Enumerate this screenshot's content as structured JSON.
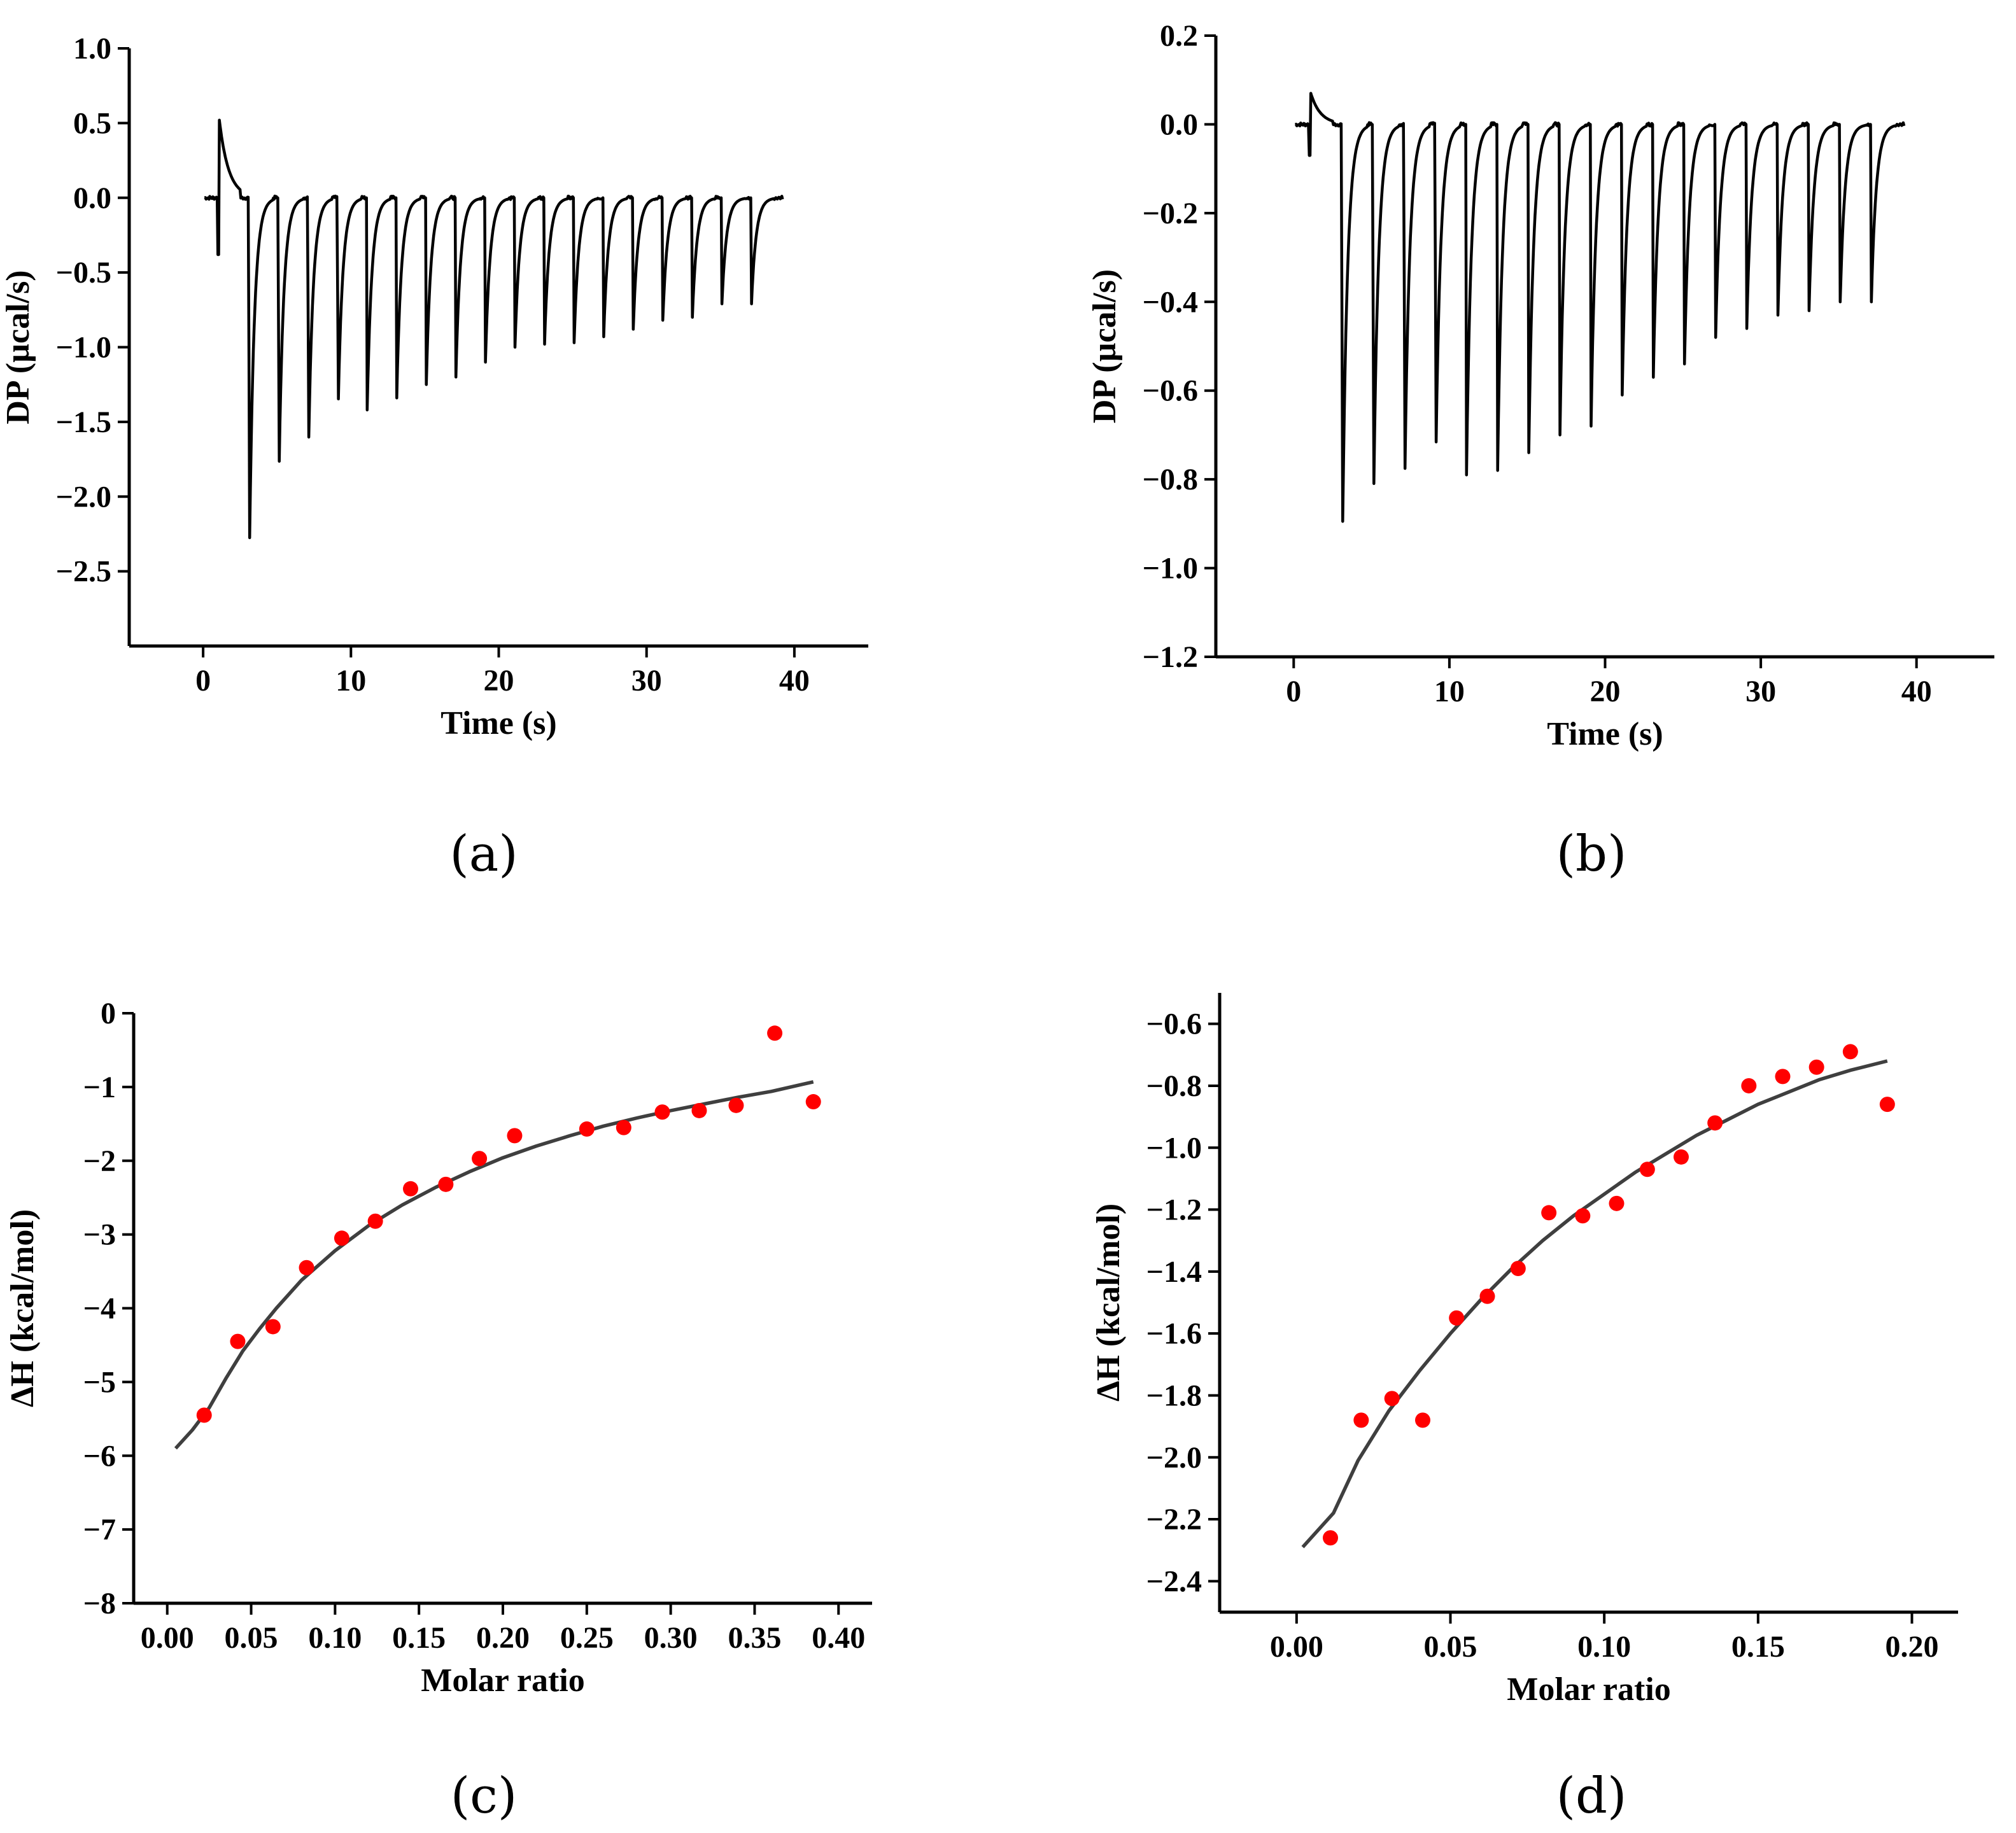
{
  "chart_data": [
    {
      "panel": "(a)",
      "type": "line",
      "title": "",
      "xlabel": "Time (s)",
      "ylabel": "DP (µcal/s)",
      "xlim": [
        -5,
        45
      ],
      "ylim": [
        -3.0,
        1.0
      ],
      "xticks": [
        0,
        10,
        20,
        30,
        40
      ],
      "xtick_labels": [
        "0",
        "10",
        "20",
        "30",
        "40"
      ],
      "yticks": [
        1.0,
        0.5,
        0.0,
        -0.5,
        -1.0,
        -1.5,
        -2.0,
        -2.5
      ],
      "ytick_labels": [
        "1.0",
        "0.5",
        "0.0",
        "−0.5",
        "−1.0",
        "−1.5",
        "−2.0",
        "−2.5"
      ],
      "grid": false,
      "series": [
        {
          "color": "#000000",
          "baseline": 0.0,
          "x_start": 0.1,
          "x_end": 39.2,
          "initial_spike": {
            "x": 1.1,
            "dip": -0.38,
            "peak": 0.52
          },
          "injections": [
            {
              "x": 3.1,
              "min": -2.67
            },
            {
              "x": 5.1,
              "min": -2.07
            },
            {
              "x": 7.1,
              "min": -1.88
            },
            {
              "x": 9.1,
              "min": -1.58
            },
            {
              "x": 11.1,
              "min": -1.42
            },
            {
              "x": 13.1,
              "min": -1.34
            },
            {
              "x": 15.1,
              "min": -1.25
            },
            {
              "x": 17.1,
              "min": -1.2
            },
            {
              "x": 19.1,
              "min": -1.1
            },
            {
              "x": 21.1,
              "min": -1.0
            },
            {
              "x": 23.1,
              "min": -0.98
            },
            {
              "x": 25.1,
              "min": -0.97
            },
            {
              "x": 27.1,
              "min": -0.93
            },
            {
              "x": 29.1,
              "min": -0.88
            },
            {
              "x": 31.1,
              "min": -0.82
            },
            {
              "x": 33.1,
              "min": -0.8
            },
            {
              "x": 35.1,
              "min": -0.71
            },
            {
              "x": 37.1,
              "min": -0.71
            }
          ]
        }
      ]
    },
    {
      "panel": "(b)",
      "type": "line",
      "title": "",
      "xlabel": "Time (s)",
      "ylabel": "DP (µcal/s)",
      "xlim": [
        -5,
        45
      ],
      "ylim": [
        -1.2,
        0.2
      ],
      "xticks": [
        0,
        10,
        20,
        30,
        40
      ],
      "xtick_labels": [
        "0",
        "10",
        "20",
        "30",
        "40"
      ],
      "yticks": [
        0.2,
        0.0,
        -0.2,
        -0.4,
        -0.6,
        -0.8,
        -1.0,
        -1.2
      ],
      "ytick_labels": [
        "0.2",
        "0.0",
        "−0.2",
        "−0.4",
        "−0.6",
        "−0.8",
        "−1.0",
        "−1.2"
      ],
      "grid": false,
      "series": [
        {
          "color": "#000000",
          "baseline": 0.0,
          "x_start": 0.1,
          "x_end": 39.2,
          "initial_spike": {
            "x": 1.1,
            "dip": -0.07,
            "peak": 0.07
          },
          "injections": [
            {
              "x": 3.1,
              "min": -1.05
            },
            {
              "x": 5.1,
              "min": -0.95
            },
            {
              "x": 7.1,
              "min": -0.91
            },
            {
              "x": 9.1,
              "min": -0.84
            },
            {
              "x": 11.1,
              "min": -0.79
            },
            {
              "x": 13.1,
              "min": -0.78
            },
            {
              "x": 15.1,
              "min": -0.74
            },
            {
              "x": 17.1,
              "min": -0.7
            },
            {
              "x": 19.1,
              "min": -0.68
            },
            {
              "x": 21.1,
              "min": -0.61
            },
            {
              "x": 23.1,
              "min": -0.57
            },
            {
              "x": 25.1,
              "min": -0.54
            },
            {
              "x": 27.1,
              "min": -0.48
            },
            {
              "x": 29.1,
              "min": -0.46
            },
            {
              "x": 31.1,
              "min": -0.43
            },
            {
              "x": 33.1,
              "min": -0.42
            },
            {
              "x": 35.1,
              "min": -0.4
            },
            {
              "x": 37.1,
              "min": -0.4
            }
          ]
        }
      ]
    },
    {
      "panel": "(c)",
      "type": "scatter",
      "title": "",
      "xlabel": "Molar ratio",
      "ylabel": "ΔH (kcal/mol)",
      "xlim": [
        -0.02,
        0.42
      ],
      "ylim": [
        -8,
        0
      ],
      "xticks": [
        0.0,
        0.05,
        0.1,
        0.15,
        0.2,
        0.25,
        0.3,
        0.35,
        0.4
      ],
      "xtick_labels": [
        "0.00",
        "0.05",
        "0.10",
        "0.15",
        "0.20",
        "0.25",
        "0.30",
        "0.35",
        "0.40"
      ],
      "yticks": [
        0,
        -1,
        -2,
        -3,
        -4,
        -5,
        -6,
        -7,
        -8
      ],
      "ytick_labels": [
        "0",
        "−1",
        "−2",
        "−3",
        "−4",
        "−5",
        "−6",
        "−7",
        "−8"
      ],
      "grid": false,
      "points": {
        "color": "#ff0000",
        "x": [
          0.022,
          0.042,
          0.063,
          0.083,
          0.104,
          0.124,
          0.145,
          0.166,
          0.186,
          0.207,
          0.25,
          0.272,
          0.295,
          0.317,
          0.339,
          0.362,
          0.385
        ],
        "y": [
          -5.45,
          -4.45,
          -4.25,
          -3.45,
          -3.05,
          -2.82,
          -2.38,
          -2.32,
          -1.97,
          -1.66,
          -1.57,
          -1.55,
          -1.34,
          -1.32,
          -1.25,
          -0.27,
          -1.2
        ]
      },
      "fit": {
        "color": "#3f3f3f",
        "x": [
          0.005,
          0.015,
          0.025,
          0.035,
          0.045,
          0.055,
          0.065,
          0.08,
          0.1,
          0.12,
          0.14,
          0.16,
          0.18,
          0.2,
          0.22,
          0.24,
          0.26,
          0.28,
          0.3,
          0.32,
          0.34,
          0.36,
          0.385
        ],
        "y": [
          -5.9,
          -5.65,
          -5.35,
          -4.95,
          -4.58,
          -4.28,
          -4.0,
          -3.62,
          -3.22,
          -2.88,
          -2.6,
          -2.36,
          -2.15,
          -1.96,
          -1.8,
          -1.66,
          -1.53,
          -1.42,
          -1.32,
          -1.23,
          -1.14,
          -1.06,
          -0.93
        ]
      }
    },
    {
      "panel": "(d)",
      "type": "scatter",
      "title": "",
      "xlabel": "Molar ratio",
      "ylabel": "ΔH (kcal/mol)",
      "xlim": [
        -0.025,
        0.215
      ],
      "ylim": [
        -2.5,
        -0.5
      ],
      "xticks": [
        0.0,
        0.05,
        0.1,
        0.15,
        0.2
      ],
      "xtick_labels": [
        "0.00",
        "0.05",
        "0.10",
        "0.15",
        "0.20"
      ],
      "yticks": [
        -0.6,
        -0.8,
        -1.0,
        -1.2,
        -1.4,
        -1.6,
        -1.8,
        -2.0,
        -2.2,
        -2.4
      ],
      "ytick_labels": [
        "−0.6",
        "−0.8",
        "−1.0",
        "−1.2",
        "−1.4",
        "−1.6",
        "−1.8",
        "−2.0",
        "−2.2",
        "−2.4"
      ],
      "grid": false,
      "points": {
        "color": "#ff0000",
        "x": [
          0.011,
          0.021,
          0.031,
          0.041,
          0.052,
          0.062,
          0.072,
          0.082,
          0.093,
          0.104,
          0.114,
          0.125,
          0.136,
          0.147,
          0.158,
          0.169,
          0.18,
          0.192
        ],
        "y": [
          -2.26,
          -1.88,
          -1.81,
          -1.88,
          -1.55,
          -1.48,
          -1.39,
          -1.21,
          -1.22,
          -1.18,
          -1.07,
          -1.03,
          -0.92,
          -0.8,
          -0.77,
          -0.74,
          -0.69,
          -0.86
        ]
      },
      "fit": {
        "color": "#3f3f3f",
        "x": [
          0.002,
          0.012,
          0.02,
          0.03,
          0.04,
          0.05,
          0.06,
          0.07,
          0.08,
          0.09,
          0.1,
          0.11,
          0.12,
          0.13,
          0.14,
          0.15,
          0.16,
          0.17,
          0.18,
          0.192
        ],
        "y": [
          -2.29,
          -2.18,
          -2.01,
          -1.85,
          -1.72,
          -1.6,
          -1.49,
          -1.39,
          -1.3,
          -1.22,
          -1.15,
          -1.08,
          -1.02,
          -0.96,
          -0.91,
          -0.86,
          -0.82,
          -0.78,
          -0.75,
          -0.72
        ]
      }
    }
  ]
}
